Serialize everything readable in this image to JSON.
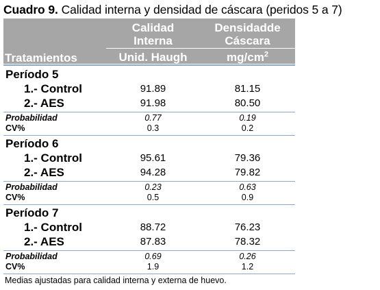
{
  "caption": {
    "label": "Cuadro 9.",
    "text": " Calidad interna y densidad de cáscara (peridos 5 a 7)"
  },
  "header": {
    "col0": "Tratamientos",
    "col1_line1": "Calidad",
    "col1_line2": "Interna",
    "col1_unit": "Unid. Haugh",
    "col2_line1": "Densidadde",
    "col2_line2": "Cáscara",
    "col2_unit_base": "mg/cm",
    "col2_unit_sup": "2"
  },
  "periods": [
    {
      "name": "Período 5",
      "rows": [
        {
          "label": "1.- Control",
          "haugh": "91.89",
          "density": "81.15"
        },
        {
          "label": "2.- AES",
          "haugh": "91.98",
          "density": "80.50"
        }
      ],
      "prob_label": "Probabilidad",
      "prob": {
        "haugh": "0.77",
        "density": "0.19"
      },
      "cv_label": "CV%",
      "cv": {
        "haugh": "0.3",
        "density": "0.2"
      }
    },
    {
      "name": "Período 6",
      "rows": [
        {
          "label": "1.- Control",
          "haugh": "95.61",
          "density": "79.36"
        },
        {
          "label": "2.- AES",
          "haugh": "94.28",
          "density": "79.82"
        }
      ],
      "prob_label": "Probabilidad",
      "prob": {
        "haugh": "0.23",
        "density": "0.63"
      },
      "cv_label": "CV%",
      "cv": {
        "haugh": "0.5",
        "density": "0.9"
      }
    },
    {
      "name": "Período 7",
      "rows": [
        {
          "label": "1.- Control",
          "haugh": "88.72",
          "density": "76.23"
        },
        {
          "label": "2.- AES",
          "haugh": "87.83",
          "density": "78.32"
        }
      ],
      "prob_label": "Probabilidad",
      "prob": {
        "haugh": "0.69",
        "density": "0.26"
      },
      "cv_label": "CV%",
      "cv": {
        "haugh": "1.9",
        "density": "1.2"
      }
    }
  ],
  "footnote": "Medias ajustadas para calidad interna y externa de huevo.",
  "colors": {
    "header_bg": "#a6a6a6",
    "rule": "#8ea9c8"
  }
}
